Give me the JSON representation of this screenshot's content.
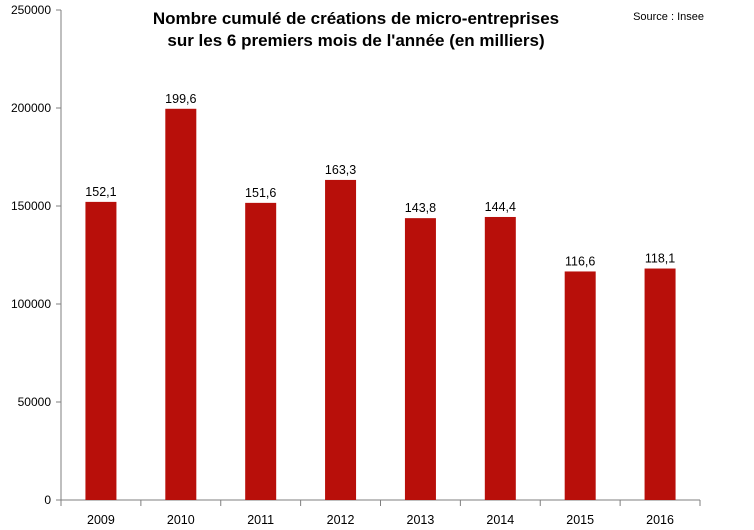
{
  "chart_data": {
    "type": "bar",
    "title_lines": [
      "Nombre cumulé de créations de micro-entreprises",
      "sur les 6 premiers mois de l'année (en milliers)"
    ],
    "source": "Source : Insee",
    "categories": [
      "2009",
      "2010",
      "2011",
      "2012",
      "2013",
      "2014",
      "2015",
      "2016"
    ],
    "values": [
      152100,
      199600,
      151600,
      163300,
      143800,
      144400,
      116600,
      118100
    ],
    "data_labels": [
      "152,1",
      "199,6",
      "151,6",
      "163,3",
      "143,8",
      "144,4",
      "116,6",
      "118,1"
    ],
    "ylim": [
      0,
      250000
    ],
    "yticks": [
      0,
      50000,
      100000,
      150000,
      200000,
      250000
    ],
    "ytick_labels": [
      "0",
      "50000",
      "100000",
      "150000",
      "200000",
      "250000"
    ],
    "xlabel": "",
    "ylabel": "",
    "grid": false,
    "legend": "none",
    "bar_color": "#b80f0a",
    "axis_color": "#7f7f7f"
  }
}
